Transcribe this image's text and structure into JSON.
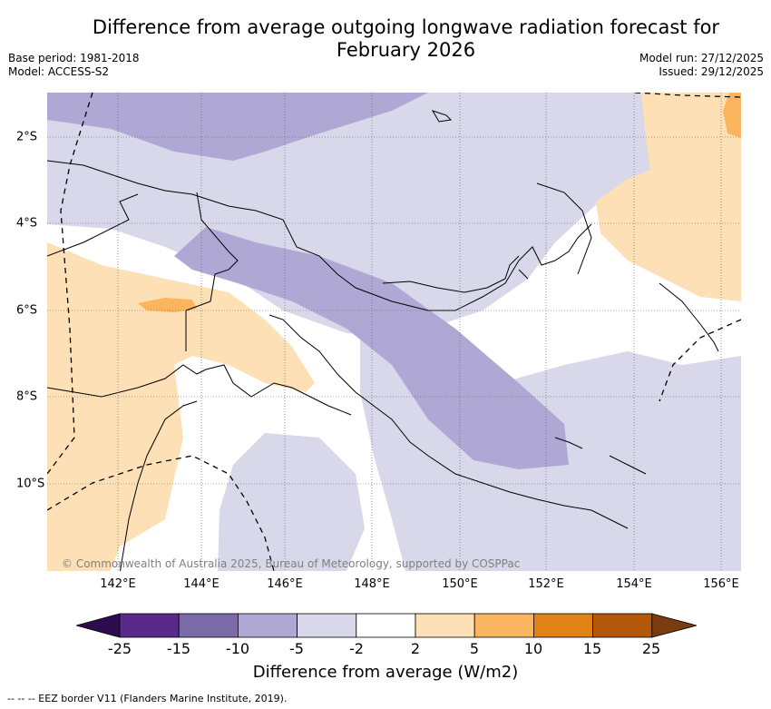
{
  "title_line1": "Difference from average outgoing longwave radiation forecast for",
  "title_line2": "February 2026",
  "base_period": "Base period: 1981-2018",
  "model": "Model: ACCESS-S2",
  "model_run": "Model run: 27/12/2025",
  "issued": "Issued: 29/12/2025",
  "lon_ticks": [
    "142°E",
    "144°E",
    "146°E",
    "148°E",
    "150°E",
    "152°E",
    "154°E",
    "156°E"
  ],
  "lat_ticks": [
    "2°S",
    "4°S",
    "6°S",
    "8°S",
    "10°S"
  ],
  "copyright": "© Commonwealth of Australia 2025, Bureau of Meteorology, supported by COSPPac",
  "colorbar": {
    "labels": [
      "-25",
      "-15",
      "-10",
      "-5",
      "-2",
      "2",
      "5",
      "10",
      "15",
      "25"
    ],
    "title": "Difference from average (W/m2)",
    "colors": {
      "below": "#2d0b4e",
      "bins": [
        "#5a2a8a",
        "#7b6aa8",
        "#b0a8d4",
        "#d8d8ea",
        "#ffffff",
        "#fde0b5",
        "#fbb55e",
        "#e08216",
        "#b35808"
      ],
      "above": "#7a3c0e"
    }
  },
  "legend": "--  --  -- EEZ border V11 (Flanders Marine Institute, 2019)."
}
